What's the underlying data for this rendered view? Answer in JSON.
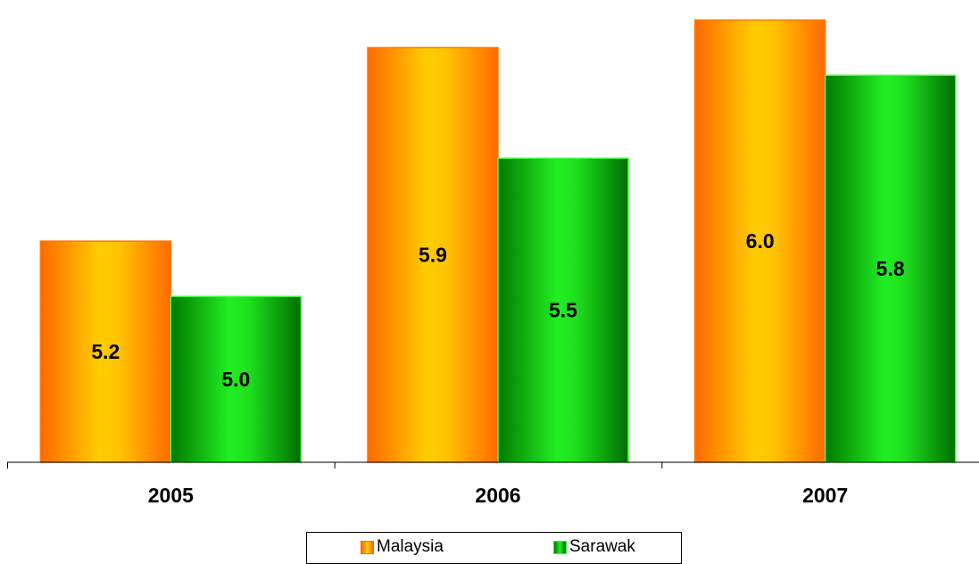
{
  "chart_data": {
    "type": "bar",
    "categories": [
      "2005",
      "2006",
      "2007"
    ],
    "series": [
      {
        "name": "Malaysia",
        "values": [
          5.2,
          5.9,
          6.0
        ],
        "labels": [
          "5.2",
          "5.9",
          "6.0"
        ],
        "color": "#ff8c00",
        "highlight": "#ffd000"
      },
      {
        "name": "Sarawak",
        "values": [
          5.0,
          5.5,
          5.8
        ],
        "labels": [
          "5.0",
          "5.5",
          "5.8"
        ],
        "color": "#008000",
        "highlight": "#33ff33"
      }
    ],
    "ylim": [
      4.4,
      6.04
    ],
    "grid": false,
    "legend": "bottom"
  }
}
